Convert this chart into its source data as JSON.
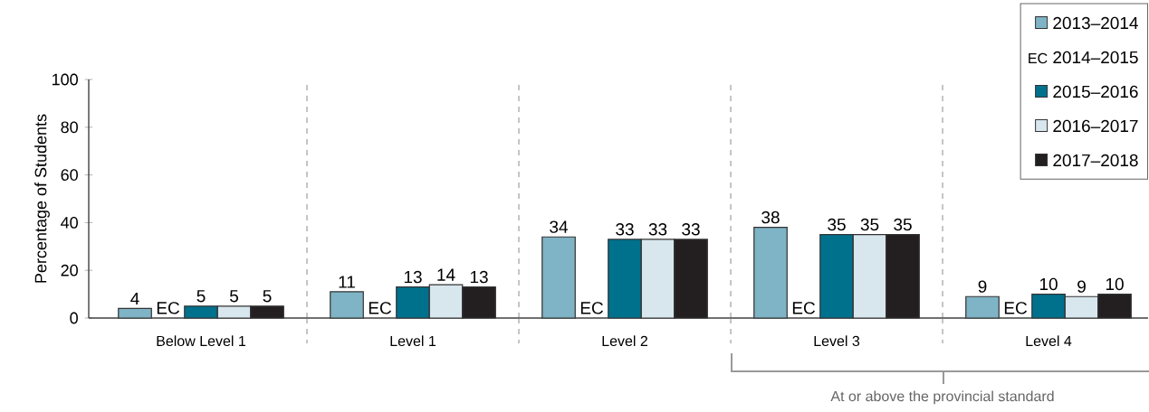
{
  "chart_data": {
    "type": "bar",
    "ylabel": "Percentage of Students",
    "categories": [
      "Below Level 1",
      "Level 1",
      "Level 2",
      "Level 3",
      "Level 4"
    ],
    "series": [
      {
        "name": "2013–2014",
        "color": "#7fb3c6",
        "values": [
          4,
          11,
          34,
          38,
          9
        ]
      },
      {
        "name": "2014–2015",
        "values": [
          null,
          null,
          null,
          null,
          null
        ],
        "value_labels": [
          "EC",
          "EC",
          "EC",
          "EC",
          "EC"
        ]
      },
      {
        "name": "2015–2016",
        "color": "#00718d",
        "values": [
          5,
          13,
          33,
          35,
          10
        ]
      },
      {
        "name": "2016–2017",
        "color": "#d8e6ee",
        "values": [
          5,
          14,
          33,
          35,
          9
        ]
      },
      {
        "name": "2017–2018",
        "color": "#231f20",
        "values": [
          5,
          13,
          33,
          35,
          10
        ]
      }
    ],
    "ylim": [
      0,
      100
    ],
    "yticks": [
      0,
      20,
      40,
      60,
      80,
      100
    ],
    "data_labels": true,
    "legend": "top right",
    "annotations": [
      "At or above the provincial standard"
    ]
  }
}
